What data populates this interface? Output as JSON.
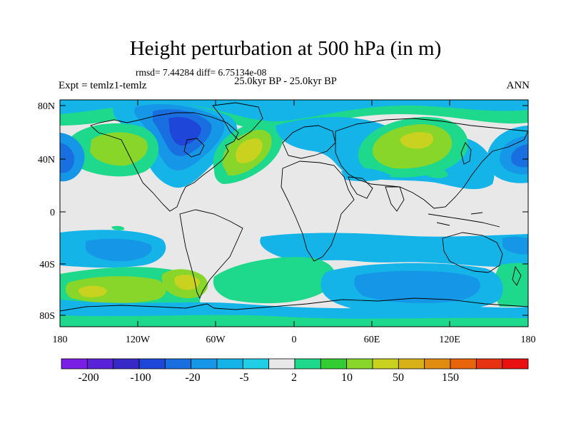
{
  "header": {
    "title": "Height perturbation at 500 hPa (in m)",
    "stats": "rmsd= 7.44284 diff= 6.75134e-08",
    "period": "25.0kyr BP - 25.0kyr BP",
    "experiment": "Expt = temlz1-temlz",
    "season": "ANN"
  },
  "map": {
    "lat_ticks": [
      "80N",
      "40N",
      "0",
      "40S",
      "80S"
    ],
    "lon_ticks": [
      "180",
      "120W",
      "60W",
      "0",
      "60E",
      "120E",
      "180"
    ],
    "projection": "cylindrical equidistant",
    "coastline_color": "#000000"
  },
  "colorbar": {
    "labels": [
      "-200",
      "-100",
      "-20",
      "-5",
      "2",
      "10",
      "50",
      "150"
    ],
    "colors": [
      "#7a1ee6",
      "#5a22d8",
      "#3728c8",
      "#1e46d8",
      "#1a6fe0",
      "#1696e6",
      "#14b4e8",
      "#20cfe6",
      "#e8e8e8",
      "#1ed88c",
      "#33cc33",
      "#88d62a",
      "#c9d21e",
      "#d8b018",
      "#e08c10",
      "#e8640a",
      "#e83214",
      "#e81010"
    ]
  }
}
